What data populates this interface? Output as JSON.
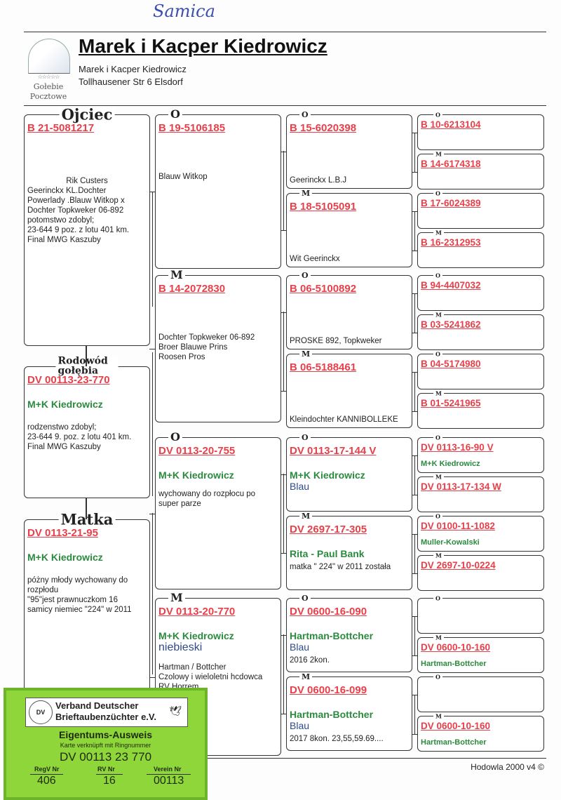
{
  "handwritten_note": "Samica",
  "header": {
    "title": "Marek i Kacper Kiedrowicz",
    "owner_name": "Marek i Kacper Kiedrowicz",
    "address": "Tollhausener Str 6 Elsdorf",
    "logo_text": [
      "☆☆☆☆☆",
      "Gołebie",
      "Pocztowe"
    ]
  },
  "colors": {
    "ring": "#e8404a",
    "breeder": "#2a8a3e",
    "color_text": "#2d4a8a",
    "card": "#8fd63a"
  },
  "pedigree": {
    "col1": [
      {
        "label": "Ojciec",
        "ring": "B  21-5081217",
        "notes": [
          "Rik Custers",
          "Geerinckx KL.Dochter",
          "Powerlady .Blauw Witkop x",
          "Dochter Topkweker 06-892",
          "potomstwo zdobyl;",
          "23-644 9 poz. z lotu 401 km.",
          "Final MWG Kaszuby"
        ]
      },
      {
        "label": "Rodowód gołębia",
        "ring": "DV 00113-23-770",
        "breeder": "M+K Kiedrowicz",
        "notes": [
          " rodzenstwo zdobyl;",
          "23-644   9. poz. z lotu 401 km.",
          "Final MWG Kaszuby"
        ]
      },
      {
        "label": "Matka",
        "ring": "DV 0113-21-95",
        "breeder": "M+K Kiedrowicz",
        "notes": [
          "póżny młody wychowany do",
          "rozpłodu",
          "\"95\"jest prawnuczkom 16",
          "samicy niemiec \"224\" w 2011"
        ]
      }
    ],
    "col2": [
      {
        "label": "O",
        "ring": "B 19-5106185",
        "notes": [
          "Blauw Witkop"
        ]
      },
      {
        "label": "M",
        "ring": "B 14-2072830",
        "notes": [
          "Dochter Topkweker 06-892",
          "Broer Blauwe Prins",
          "Roosen Pros"
        ]
      },
      {
        "label": "O",
        "ring": "DV 0113-20-755",
        "breeder": "M+K Kiedrowicz",
        "notes": [
          "wychowany do rozpłocu po",
          "super parze"
        ]
      },
      {
        "label": "M",
        "ring": "DV 0113-20-770",
        "breeder": "M+K Kiedrowicz",
        "color": "niebieski",
        "notes": [
          "Hartman / Bottcher",
          "Czolowy i wieloletni hcdowca",
          "RV Horrem"
        ]
      }
    ],
    "col3": [
      {
        "label": "O",
        "ring": "B 15-6020398",
        "notes": [
          "Geerinckx L.B.J"
        ]
      },
      {
        "label": "M",
        "ring": "B 18-5105091",
        "notes": [
          "Wit Geerinckx"
        ]
      },
      {
        "label": "O",
        "ring": "B 06-5100892",
        "notes": [
          "PROSKE 892, Topkweker"
        ]
      },
      {
        "label": "M",
        "ring": "B 06-5188461",
        "notes": [
          "Kleindochter KANNIBOLLEKE"
        ]
      },
      {
        "label": "O",
        "ring": "DV 0113-17-144 V",
        "breeder": "M+K Kiedrowicz",
        "color": "Blau",
        "notes": []
      },
      {
        "label": "M",
        "ring": "DV 2697-17-305",
        "breeder": "Rita - Paul Bank",
        "notes": [
          "matka  \" 224\" w 2011  została"
        ]
      },
      {
        "label": "O",
        "ring": "DV 0600-16-090",
        "breeder": "Hartman-Bottcher",
        "color": "Blau",
        "notes": [
          "2016  2kon."
        ]
      },
      {
        "label": "M",
        "ring": "DV 0600-16-099",
        "breeder": "Hartman-Bottcher",
        "color": "Blau",
        "notes": [
          "2017    8kon. 23,55,59.69...."
        ]
      }
    ],
    "col4": [
      {
        "label": "O",
        "ring": "B 10-6213104"
      },
      {
        "label": "M",
        "ring": "B 14-6174318"
      },
      {
        "label": "O",
        "ring": "B 17-6024389"
      },
      {
        "label": "M",
        "ring": "B 16-2312953"
      },
      {
        "label": "O",
        "ring": "B 94-4407032"
      },
      {
        "label": "M",
        "ring": "B 03-5241862"
      },
      {
        "label": "O",
        "ring": "B 04-5174980"
      },
      {
        "label": "M",
        "ring": "B 01-5241965"
      },
      {
        "label": "O",
        "ring": "DV 0113-16-90 V",
        "breeder": "M+K Kiedrowicz"
      },
      {
        "label": "M",
        "ring": "DV 0113-17-134 W"
      },
      {
        "label": "O",
        "ring": "DV 0100-11-1082",
        "breeder": "Muller-Kowalski"
      },
      {
        "label": "M",
        "ring": "DV 2697-10-0224"
      },
      {
        "label": "O"
      },
      {
        "label": "M",
        "ring": "DV 0600-10-160",
        "breeder": "Hartman-Bottcher"
      },
      {
        "label": "O"
      },
      {
        "label": "M",
        "ring": "DV 0600-10-160",
        "breeder": "Hartman-Bottcher"
      }
    ]
  },
  "footer": "Hodowla 2000 v4 ©",
  "card": {
    "org_line1": "Verband Deutscher",
    "org_line2": "Brieftaubenzüchter e.V.",
    "seal": "DV",
    "title": "Eigentums-Ausweis",
    "subtitle": "Karte verknüpft mit Ringnummer",
    "ring": "DV 00113 23 770",
    "regv_label": "RegV Nr",
    "regv": "406",
    "rv_label": "RV Nr",
    "rv": "16",
    "verein_label": "Verein Nr",
    "verein": "00113"
  }
}
